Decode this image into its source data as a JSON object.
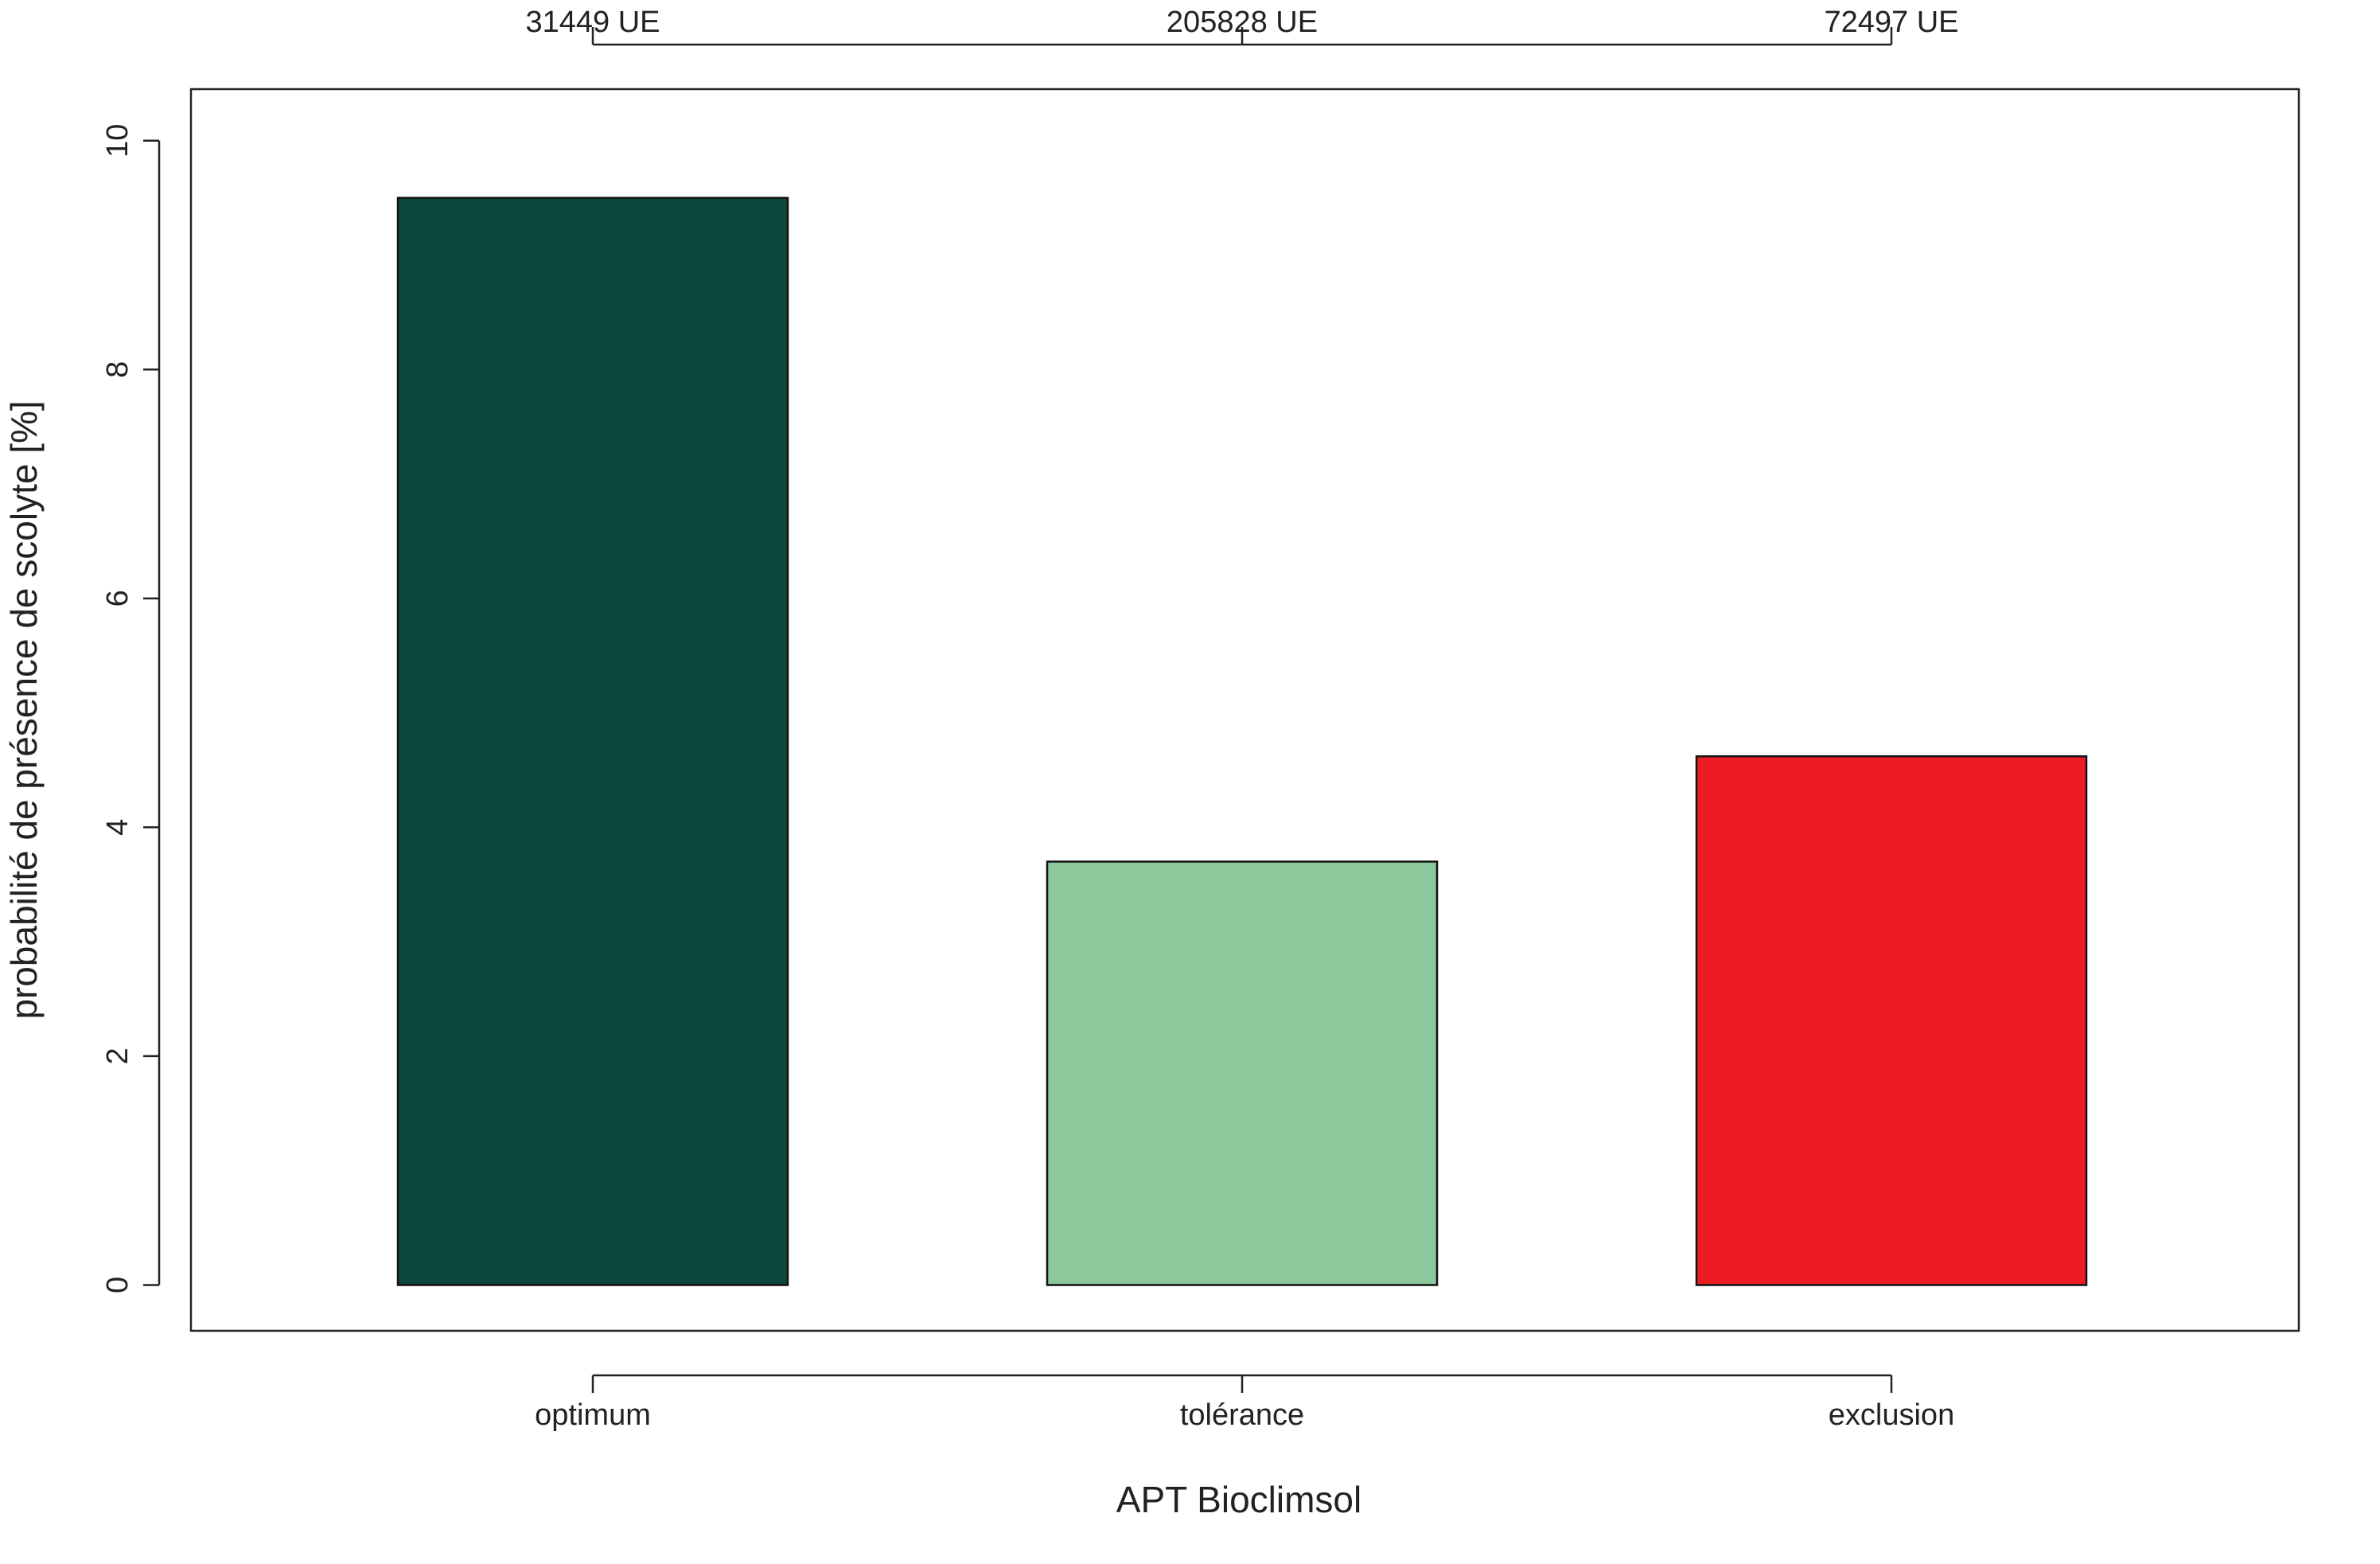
{
  "chart_data": {
    "type": "bar",
    "categories": [
      "optimum",
      "tolérance",
      "exclusion"
    ],
    "values": [
      9.5,
      3.7,
      4.62
    ],
    "top_labels": [
      "31449 UE",
      "205828 UE",
      "72497 UE"
    ],
    "colors": [
      "#0c463e",
      "#8bc89b",
      "#ed1c24"
    ],
    "xlabel": "APT Bioclimsol",
    "ylabel": "probabilité de présence de scolyte [%]",
    "ylim": [
      -0.4,
      10.45
    ],
    "yticks": [
      0,
      2,
      4,
      6,
      8,
      10
    ],
    "grid": false,
    "legend": "none"
  }
}
